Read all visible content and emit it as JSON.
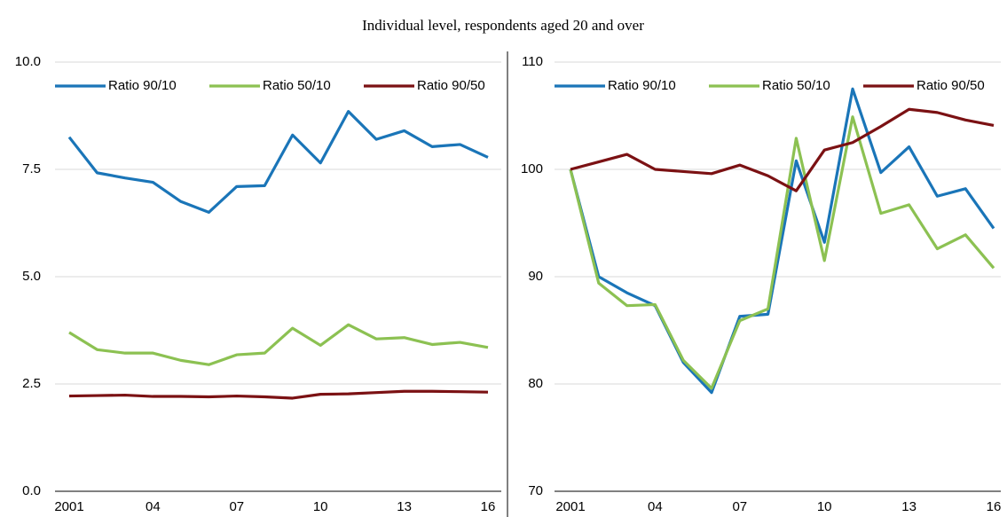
{
  "title": "Individual level, respondents aged 20 and over",
  "chart_data": [
    {
      "type": "line",
      "categories": [
        "2001",
        null,
        null,
        "04",
        null,
        null,
        "07",
        null,
        null,
        "10",
        null,
        null,
        "13",
        null,
        null,
        "16"
      ],
      "series": [
        {
          "name": "Ratio 90/10",
          "color": "#1a75b8",
          "values": [
            8.25,
            7.42,
            7.3,
            7.2,
            6.75,
            6.5,
            7.1,
            7.12,
            8.3,
            7.65,
            8.85,
            8.2,
            8.4,
            8.03,
            8.08,
            7.78
          ]
        },
        {
          "name": "Ratio 50/10",
          "color": "#8cc152",
          "values": [
            3.7,
            3.3,
            3.22,
            3.22,
            3.05,
            2.95,
            3.18,
            3.22,
            3.8,
            3.4,
            3.88,
            3.55,
            3.58,
            3.42,
            3.47,
            3.35
          ]
        },
        {
          "name": "Ratio 90/50",
          "color": "#7b1113",
          "values": [
            2.22,
            2.23,
            2.24,
            2.21,
            2.21,
            2.2,
            2.22,
            2.2,
            2.17,
            2.26,
            2.27,
            2.3,
            2.33,
            2.33,
            2.32,
            2.31
          ]
        }
      ],
      "ylim": [
        0,
        10
      ],
      "yticks": [
        {
          "value": 0,
          "label": "0.0"
        },
        2.5,
        {
          "value": 5,
          "label": "5.0"
        },
        7.5,
        {
          "value": 10,
          "label": "10.0"
        }
      ],
      "grid": true,
      "legend": "top-left"
    },
    {
      "type": "line",
      "categories": [
        "2001",
        null,
        null,
        "04",
        null,
        null,
        "07",
        null,
        null,
        "10",
        null,
        null,
        "13",
        null,
        null,
        "16"
      ],
      "series": [
        {
          "name": "Ratio 90/10",
          "color": "#1a75b8",
          "values": [
            100,
            90,
            88.5,
            87.3,
            82,
            79.2,
            86.3,
            86.5,
            100.8,
            93.2,
            107.5,
            99.7,
            102.1,
            97.5,
            98.2,
            94.5
          ]
        },
        {
          "name": "Ratio 50/10",
          "color": "#8cc152",
          "values": [
            100,
            89.4,
            87.3,
            87.4,
            82.2,
            79.6,
            85.9,
            87,
            102.9,
            91.5,
            104.9,
            95.9,
            96.7,
            92.6,
            93.9,
            90.8
          ]
        },
        {
          "name": "Ratio 90/50",
          "color": "#7b1113",
          "values": [
            100,
            100.7,
            101.4,
            100,
            99.8,
            99.6,
            100.4,
            99.4,
            98,
            101.8,
            102.5,
            104,
            105.6,
            105.3,
            104.6,
            104.1
          ]
        }
      ],
      "ylim": [
        70,
        110
      ],
      "yticks": [
        70,
        80,
        90,
        100,
        110
      ],
      "grid": true,
      "legend": "top-left"
    }
  ]
}
